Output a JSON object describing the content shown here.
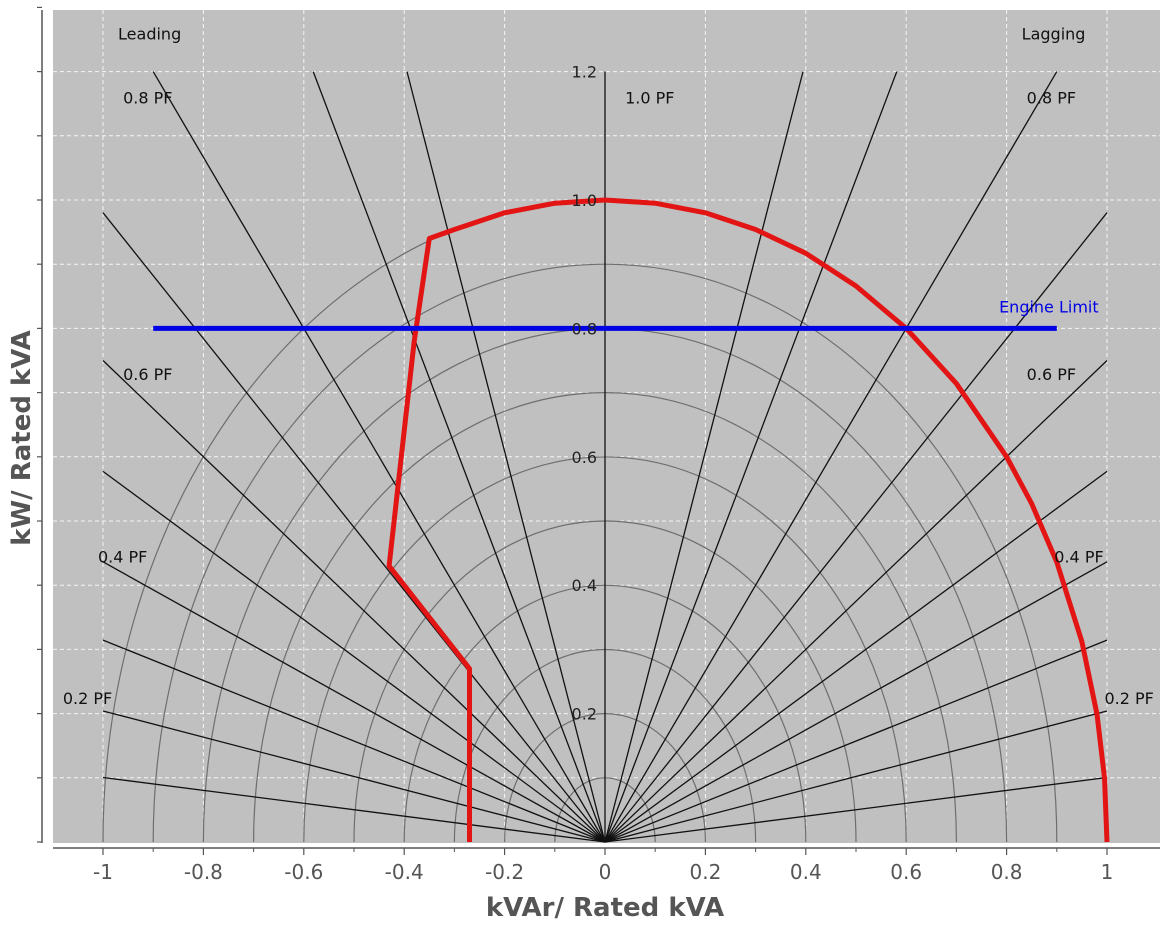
{
  "chart_data": {
    "type": "line",
    "title": "",
    "xlabel": "kVAr/ Rated kVA",
    "ylabel": "kW/ Rated kVA",
    "xlim": [
      -1.0,
      1.1
    ],
    "ylim": [
      0.0,
      1.3
    ],
    "grid": true,
    "x_ticks": [
      {
        "value": -1.0,
        "label": "-1"
      },
      {
        "value": -0.8,
        "label": "-0.8"
      },
      {
        "value": -0.6,
        "label": "-0.6"
      },
      {
        "value": -0.4,
        "label": "-0.4"
      },
      {
        "value": -0.2,
        "label": "-0.2"
      },
      {
        "value": 0.0,
        "label": "0"
      },
      {
        "value": 0.2,
        "label": "0.2"
      },
      {
        "value": 0.4,
        "label": "0.4"
      },
      {
        "value": 0.6,
        "label": "0.6"
      },
      {
        "value": 0.8,
        "label": "0.8"
      },
      {
        "value": 1.0,
        "label": "1"
      }
    ],
    "y_ticks": [
      {
        "value": 0.2,
        "label": "0.2"
      },
      {
        "value": 0.4,
        "label": "0.4"
      },
      {
        "value": 0.6,
        "label": "0.6"
      },
      {
        "value": 0.8,
        "label": "0.8"
      },
      {
        "value": 1.0,
        "label": "1.0"
      },
      {
        "value": 1.2,
        "label": "1.2"
      }
    ],
    "radial_arc_radii": [
      0.1,
      0.2,
      0.3,
      0.4,
      0.5,
      0.6,
      0.7,
      0.8,
      0.9,
      1.0
    ],
    "pf_lines": [
      0.1,
      0.2,
      0.3,
      0.4,
      0.5,
      0.6,
      0.7,
      0.8,
      0.9,
      0.95
    ],
    "pf_labels": [
      {
        "text": "0.8 PF",
        "x": -0.96,
        "y": 1.15
      },
      {
        "text": "1.0 PF",
        "x": 0.04,
        "y": 1.15
      },
      {
        "text": "0.8 PF",
        "x": 0.84,
        "y": 1.15
      },
      {
        "text": "0.6 PF",
        "x": -0.96,
        "y": 0.72
      },
      {
        "text": "0.6 PF",
        "x": 0.84,
        "y": 0.72
      },
      {
        "text": "0.4 PF",
        "x": -1.01,
        "y": 0.435
      },
      {
        "text": "0.4 PF",
        "x": 0.895,
        "y": 0.435
      },
      {
        "text": "0.2 PF",
        "x": -1.08,
        "y": 0.215
      },
      {
        "text": "0.2 PF",
        "x": 0.995,
        "y": 0.215
      }
    ],
    "corner_labels": [
      {
        "text": "Leading",
        "x": -0.97,
        "y": 1.25
      },
      {
        "text": "Lagging",
        "x": 0.83,
        "y": 1.25
      }
    ],
    "series": [
      {
        "color": "#e21414",
        "points": [
          [
            -0.27,
            0.0
          ],
          [
            -0.27,
            0.27
          ],
          [
            -0.43,
            0.43
          ],
          [
            -0.38,
            0.78
          ],
          [
            -0.35,
            0.94
          ],
          [
            -0.3,
            0.954
          ],
          [
            -0.2,
            0.98
          ],
          [
            -0.1,
            0.995
          ],
          [
            0.0,
            1.0
          ],
          [
            0.1,
            0.995
          ],
          [
            0.2,
            0.98
          ],
          [
            0.3,
            0.954
          ],
          [
            0.4,
            0.917
          ],
          [
            0.5,
            0.866
          ],
          [
            0.6,
            0.8
          ],
          [
            0.7,
            0.714
          ],
          [
            0.8,
            0.6
          ],
          [
            0.85,
            0.527
          ],
          [
            0.9,
            0.436
          ],
          [
            0.95,
            0.312
          ],
          [
            0.98,
            0.199
          ],
          [
            0.995,
            0.1
          ],
          [
            1.0,
            0.0
          ]
        ]
      },
      {
        "name": "Engine Limit",
        "color": "#0000e6",
        "points": [
          [
            -0.9,
            0.8
          ],
          [
            0.9,
            0.8
          ]
        ]
      }
    ],
    "annotations": [
      {
        "text": "Engine Limit",
        "x": 0.785,
        "y": 0.825,
        "color": "#0000e6"
      }
    ]
  },
  "colors": {
    "plot_background": "#c0c0c0",
    "grid": "#ffffff",
    "pf_line": "#111111",
    "arc": "#6e6e6e",
    "axis": "#555555"
  }
}
